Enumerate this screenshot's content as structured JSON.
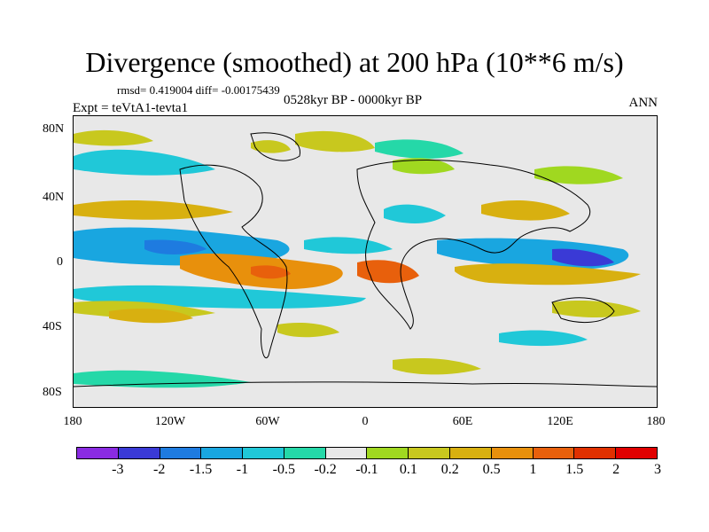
{
  "title": "Divergence (smoothed) at 200 hPa (10**6 m/s)",
  "stats": "rmsd= 0.419004 diff= -0.00175439",
  "period": "0528kyr BP - 0000kyr BP",
  "experiment": "Expt = teVtA1-tevta1",
  "season": "ANN",
  "lat_labels": [
    "80N",
    "40N",
    "0",
    "40S",
    "80S"
  ],
  "lon_labels": [
    "180",
    "120W",
    "60W",
    "0",
    "60E",
    "120E",
    "180"
  ],
  "colorbar": {
    "colors": [
      "#8a2be2",
      "#3a3ad6",
      "#1e7be0",
      "#19a6e0",
      "#20c8d8",
      "#25d8a8",
      "#e8e8e8",
      "#a0d820",
      "#c8c81e",
      "#d8b010",
      "#e8900c",
      "#e8600c",
      "#e03000",
      "#e00000"
    ],
    "labels": [
      "-3",
      "-2",
      "-1.5",
      "-1",
      "-0.5",
      "-0.2",
      "-0.1",
      "0.1",
      "0.2",
      "0.5",
      "1",
      "1.5",
      "2",
      "3"
    ]
  }
}
